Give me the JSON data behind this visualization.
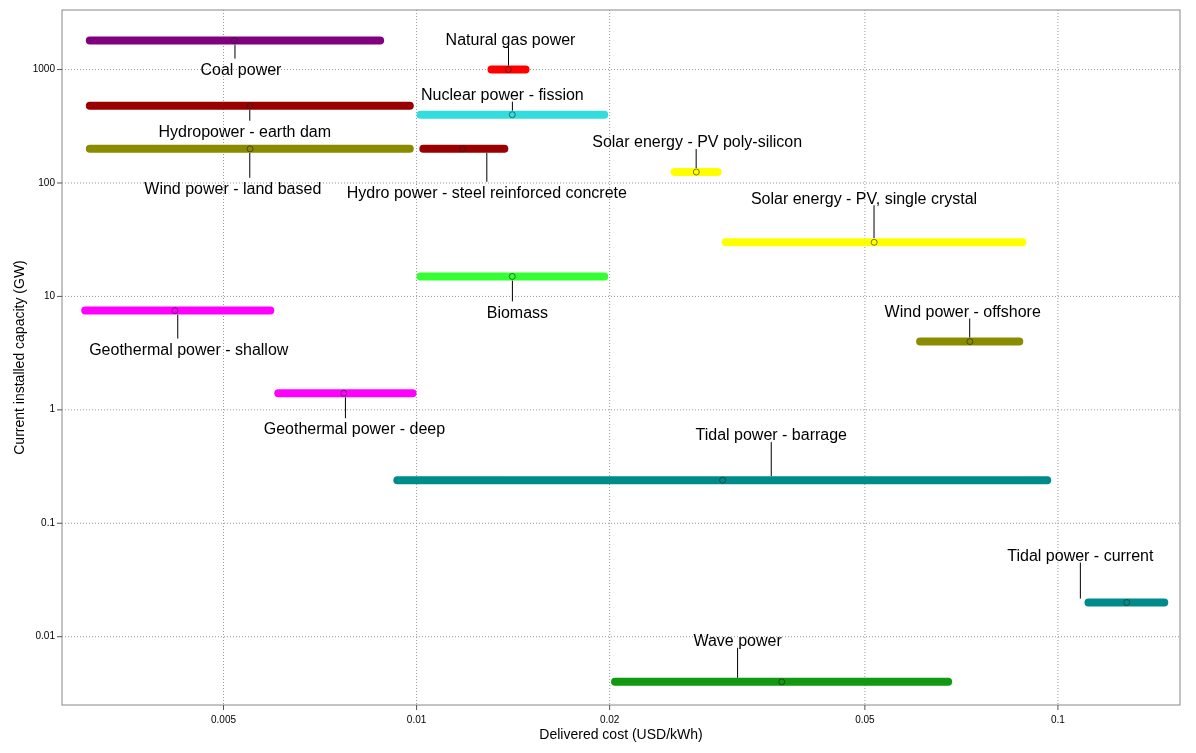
{
  "chart_data": {
    "type": "scatter",
    "xlabel": "Delivered cost (USD/kWh)",
    "ylabel": "Current installed capacity (GW)",
    "log": "xy",
    "grid": true,
    "xlim": [
      0.0028,
      0.155
    ],
    "ylim": [
      0.0025,
      3350
    ],
    "xticks": [
      0.005,
      0.01,
      0.02,
      0.05,
      0.1
    ],
    "yticks": [
      0.01,
      0.1,
      1,
      10,
      100,
      1000
    ],
    "series": [
      {
        "name": "Coal power",
        "color": "#800080",
        "x": [
          0.0052
        ],
        "values": [
          1800
        ],
        "xerrors": [
          [
            0.00305,
            0.0089
          ]
        ]
      },
      {
        "name": "Natural gas power",
        "color": "#ff0000",
        "x": [
          0.0139
        ],
        "values": [
          1000
        ],
        "xerrors": [
          [
            0.0129,
            0.015
          ]
        ]
      },
      {
        "name": "Hydropower - earth dam",
        "color": "#990000",
        "x": [
          0.0055
        ],
        "values": [
          480
        ],
        "xerrors": [
          [
            0.00305,
            0.0099
          ]
        ]
      },
      {
        "name": "Nuclear power - fission",
        "color": "#33dddd",
        "x": [
          0.0141
        ],
        "values": [
          400
        ],
        "xerrors": [
          [
            0.01,
            0.0199
          ]
        ]
      },
      {
        "name": "Wind power - land based",
        "color": "#8b8b00",
        "x": [
          0.0055
        ],
        "values": [
          200
        ],
        "xerrors": [
          [
            0.00305,
            0.0099
          ]
        ]
      },
      {
        "name": "Hydro power - steel reinforced concrete",
        "color": "#990000",
        "x": [
          0.0118
        ],
        "values": [
          200
        ],
        "xerrors": [
          [
            0.0101,
            0.0139
          ]
        ]
      },
      {
        "name": "Solar energy - PV poly-silicon",
        "color": "#ffff00",
        "x": [
          0.0273
        ],
        "values": [
          125
        ],
        "xerrors": [
          [
            0.0249,
            0.0299
          ]
        ]
      },
      {
        "name": "Solar energy - PV, single crystal",
        "color": "#ffff00",
        "x": [
          0.0517
        ],
        "values": [
          30
        ],
        "xerrors": [
          [
            0.0299,
            0.0893
          ]
        ]
      },
      {
        "name": "Biomass",
        "color": "#33ff33",
        "x": [
          0.0141
        ],
        "values": [
          15
        ],
        "xerrors": [
          [
            0.01,
            0.0199
          ]
        ]
      },
      {
        "name": "Geothermal power - shallow",
        "color": "#ff00ff",
        "x": [
          0.0042
        ],
        "values": [
          7.5
        ],
        "xerrors": [
          [
            0.003,
            0.006
          ]
        ]
      },
      {
        "name": "Wind power - offshore",
        "color": "#8b8b00",
        "x": [
          0.0729
        ],
        "values": [
          4
        ],
        "xerrors": [
          [
            0.0601,
            0.0883
          ]
        ]
      },
      {
        "name": "Geothermal power - deep",
        "color": "#ff00ff",
        "x": [
          0.0077
        ],
        "values": [
          1.4
        ],
        "xerrors": [
          [
            0.006,
            0.01
          ]
        ]
      },
      {
        "name": "Tidal power - barrage",
        "color": "#008b8b",
        "x": [
          0.03
        ],
        "values": [
          0.24
        ],
        "xerrors": [
          [
            0.0092,
            0.0976
          ]
        ]
      },
      {
        "name": "Tidal power - current",
        "color": "#008b8b",
        "x": [
          0.128
        ],
        "values": [
          0.02
        ],
        "xerrors": [
          [
            0.11,
            0.1486
          ]
        ]
      },
      {
        "name": "Wave power",
        "color": "#119911",
        "x": [
          0.0371
        ],
        "values": [
          0.004
        ],
        "xerrors": [
          [
            0.0201,
            0.0684
          ]
        ]
      }
    ]
  }
}
